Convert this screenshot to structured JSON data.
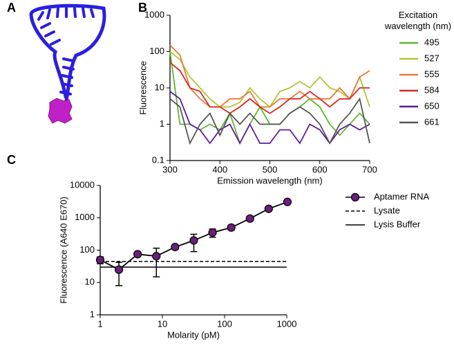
{
  "panel_labels": [
    "A",
    "B",
    "C"
  ],
  "chart_data": [
    {
      "type": "line",
      "xlabel": "Emission wavelength (nm)",
      "ylabel": "Fluorescence",
      "legend_title": "Excitation wavelength (nm)",
      "legend": "right",
      "xlim": [
        300,
        700
      ],
      "xticks": [
        300,
        400,
        500,
        600,
        700
      ],
      "ylim": [
        0.1,
        1000
      ],
      "yticks": [
        0.1,
        1,
        10,
        100,
        1000
      ],
      "ylog": true,
      "x": [
        300,
        320,
        340,
        360,
        380,
        400,
        420,
        440,
        460,
        480,
        500,
        520,
        540,
        560,
        580,
        600,
        620,
        640,
        660,
        680,
        700
      ],
      "series": [
        {
          "name": "495",
          "color": "#5cb82e",
          "values": [
            100,
            1,
            1,
            0.7,
            1,
            0.7,
            2,
            0.3,
            1,
            3,
            1,
            1,
            2,
            3,
            5,
            3,
            1,
            0.5,
            1,
            2,
            1
          ]
        },
        {
          "name": "527",
          "color": "#b5c431",
          "values": [
            100,
            60,
            20,
            10,
            5,
            3,
            3,
            4,
            10,
            5,
            3,
            8,
            10,
            15,
            10,
            20,
            10,
            8,
            5,
            20,
            3
          ]
        },
        {
          "name": "555",
          "color": "#e8793a",
          "values": [
            150,
            80,
            10,
            5,
            3,
            3,
            5,
            5,
            8,
            3,
            3,
            5,
            5,
            8,
            5,
            5,
            5,
            10,
            5,
            20,
            30
          ]
        },
        {
          "name": "584",
          "color": "#d42a20",
          "values": [
            50,
            30,
            10,
            8,
            3,
            3,
            2,
            3,
            5,
            3,
            2,
            3,
            5,
            5,
            8,
            5,
            3,
            5,
            5,
            10,
            10
          ]
        },
        {
          "name": "650",
          "color": "#5b1a9e",
          "values": [
            8,
            5,
            1,
            0.7,
            0.3,
            0.7,
            1,
            0.3,
            1,
            0.3,
            0.3,
            0.7,
            0.7,
            0.3,
            1,
            0.7,
            0.3,
            0.7,
            1,
            0.7,
            1
          ]
        },
        {
          "name": "661",
          "color": "#555555",
          "values": [
            5,
            3,
            0.3,
            1,
            2,
            0.5,
            2,
            1,
            2,
            1,
            1,
            1,
            2,
            3,
            2,
            1,
            0.3,
            1,
            2,
            5,
            0.3
          ]
        }
      ]
    },
    {
      "type": "errorline",
      "xlabel": "Molarity (pM)",
      "ylabel": "Fluorescence (A640 E670)",
      "legend": "right",
      "xlim": [
        1,
        1000
      ],
      "xticks": [
        1,
        10,
        100,
        1000
      ],
      "xlog": true,
      "ylim": [
        1,
        10000
      ],
      "yticks": [
        1,
        10,
        100,
        1000,
        10000
      ],
      "ylog": true,
      "x": [
        1,
        2,
        4,
        8,
        16,
        32,
        64,
        128,
        256,
        512,
        1024
      ],
      "series": [
        {
          "name": "Aptamer RNA",
          "color": "#6a1f7a",
          "values": [
            50,
            25,
            75,
            65,
            125,
            200,
            350,
            500,
            950,
            1900,
            3100
          ],
          "errors": [
            12,
            17,
            8,
            50,
            15,
            110,
            100,
            80,
            150,
            150,
            200
          ]
        }
      ],
      "hlines": [
        {
          "name": "Lysate",
          "value": 45,
          "style": "dashed"
        },
        {
          "name": "Lysis Buffer",
          "value": 30,
          "style": "solid"
        }
      ]
    }
  ]
}
